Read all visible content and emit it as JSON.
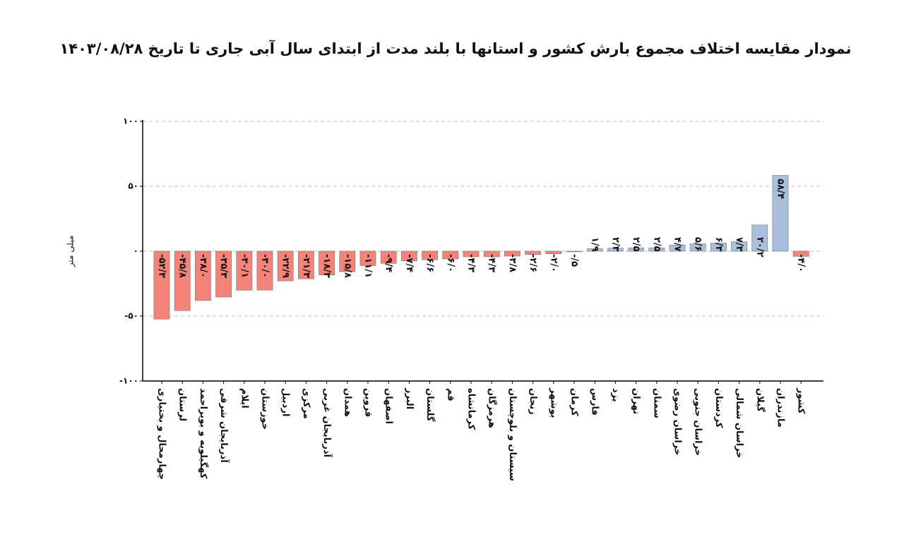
{
  "chart_data": {
    "type": "bar",
    "title": "نمودار مقایسه اختلاف مجموع بارش کشور و استانها با بلند مدت از ابتدای سال آبی جاری تا تاریخ ۱۴۰۳/۰۸/۲۸",
    "y_label": "میلی متر",
    "categories": [
      "چهارمحال و بختیاری",
      "لرستان",
      "کهگیلویه و بویراحمد",
      "آذربایجان شرقی",
      "ایلام",
      "خوزستان",
      "اردبیل",
      "مرکزی",
      "آذربایجان غربی",
      "همدان",
      "قزوین",
      "اصفهان",
      "البرز",
      "گلستان",
      "قم",
      "کرمانشاه",
      "هرمزگان",
      "سیستان و بلوچستان",
      "زنجان",
      "بوشهر",
      "کرمان",
      "فارس",
      "یزد",
      "تهران",
      "سمنان",
      "خراسان رضوی",
      "خراسان جنوبی",
      "کردستان",
      "خراسان شمالی",
      "گیلان",
      "مازندران",
      "کشور"
    ],
    "values": [
      -52.3,
      -45.8,
      -38.0,
      -35.3,
      -30.1,
      -30.0,
      -22.9,
      -21.3,
      -18.3,
      -15.8,
      -11.1,
      -9.4,
      -7.4,
      -6.6,
      -6.0,
      -4.3,
      -4.3,
      -3.8,
      -2.6,
      -2.0,
      -0.5,
      1.9,
      2.3,
      2.5,
      2.5,
      4.7,
      5.6,
      6.3,
      7.3,
      20.2,
      58.4,
      -4.0
    ],
    "value_labels": [
      "-۵۲/۳",
      "-۴۵/۸",
      "-۳۸/۰",
      "-۳۵/۳",
      "-۳۰/۱",
      "-۳۰/۰",
      "-۲۲/۹",
      "-۲۱/۳",
      "-۱۸/۳",
      "-۱۵/۸",
      "-۱۱/۱",
      "-۹/۴",
      "-۷/۴",
      "-۶/۶",
      "-۶/۰",
      "-۴/۳",
      "-۴/۳",
      "-۳/۸",
      "-۲/۶",
      "-۲/۰",
      "-/۵",
      "۱/۹",
      "۲/۳",
      "۲/۵",
      "۲/۵",
      "۴/۷",
      "۵/۶",
      "۶/۳",
      "۷/۳",
      "۲۰/۲",
      "۵۸/۴",
      "-۴/۰"
    ],
    "color_negative": "#f4837a",
    "color_positive": "#a9bfdc",
    "ylim": [
      -100,
      100
    ],
    "yticks": [
      {
        "value": -100,
        "label": "-۱۰۰"
      },
      {
        "value": -50,
        "label": "-۵۰"
      },
      {
        "value": 0,
        "label": "۰"
      },
      {
        "value": 50,
        "label": "۵۰"
      },
      {
        "value": 100,
        "label": "۱۰۰"
      }
    ],
    "grid": true
  }
}
